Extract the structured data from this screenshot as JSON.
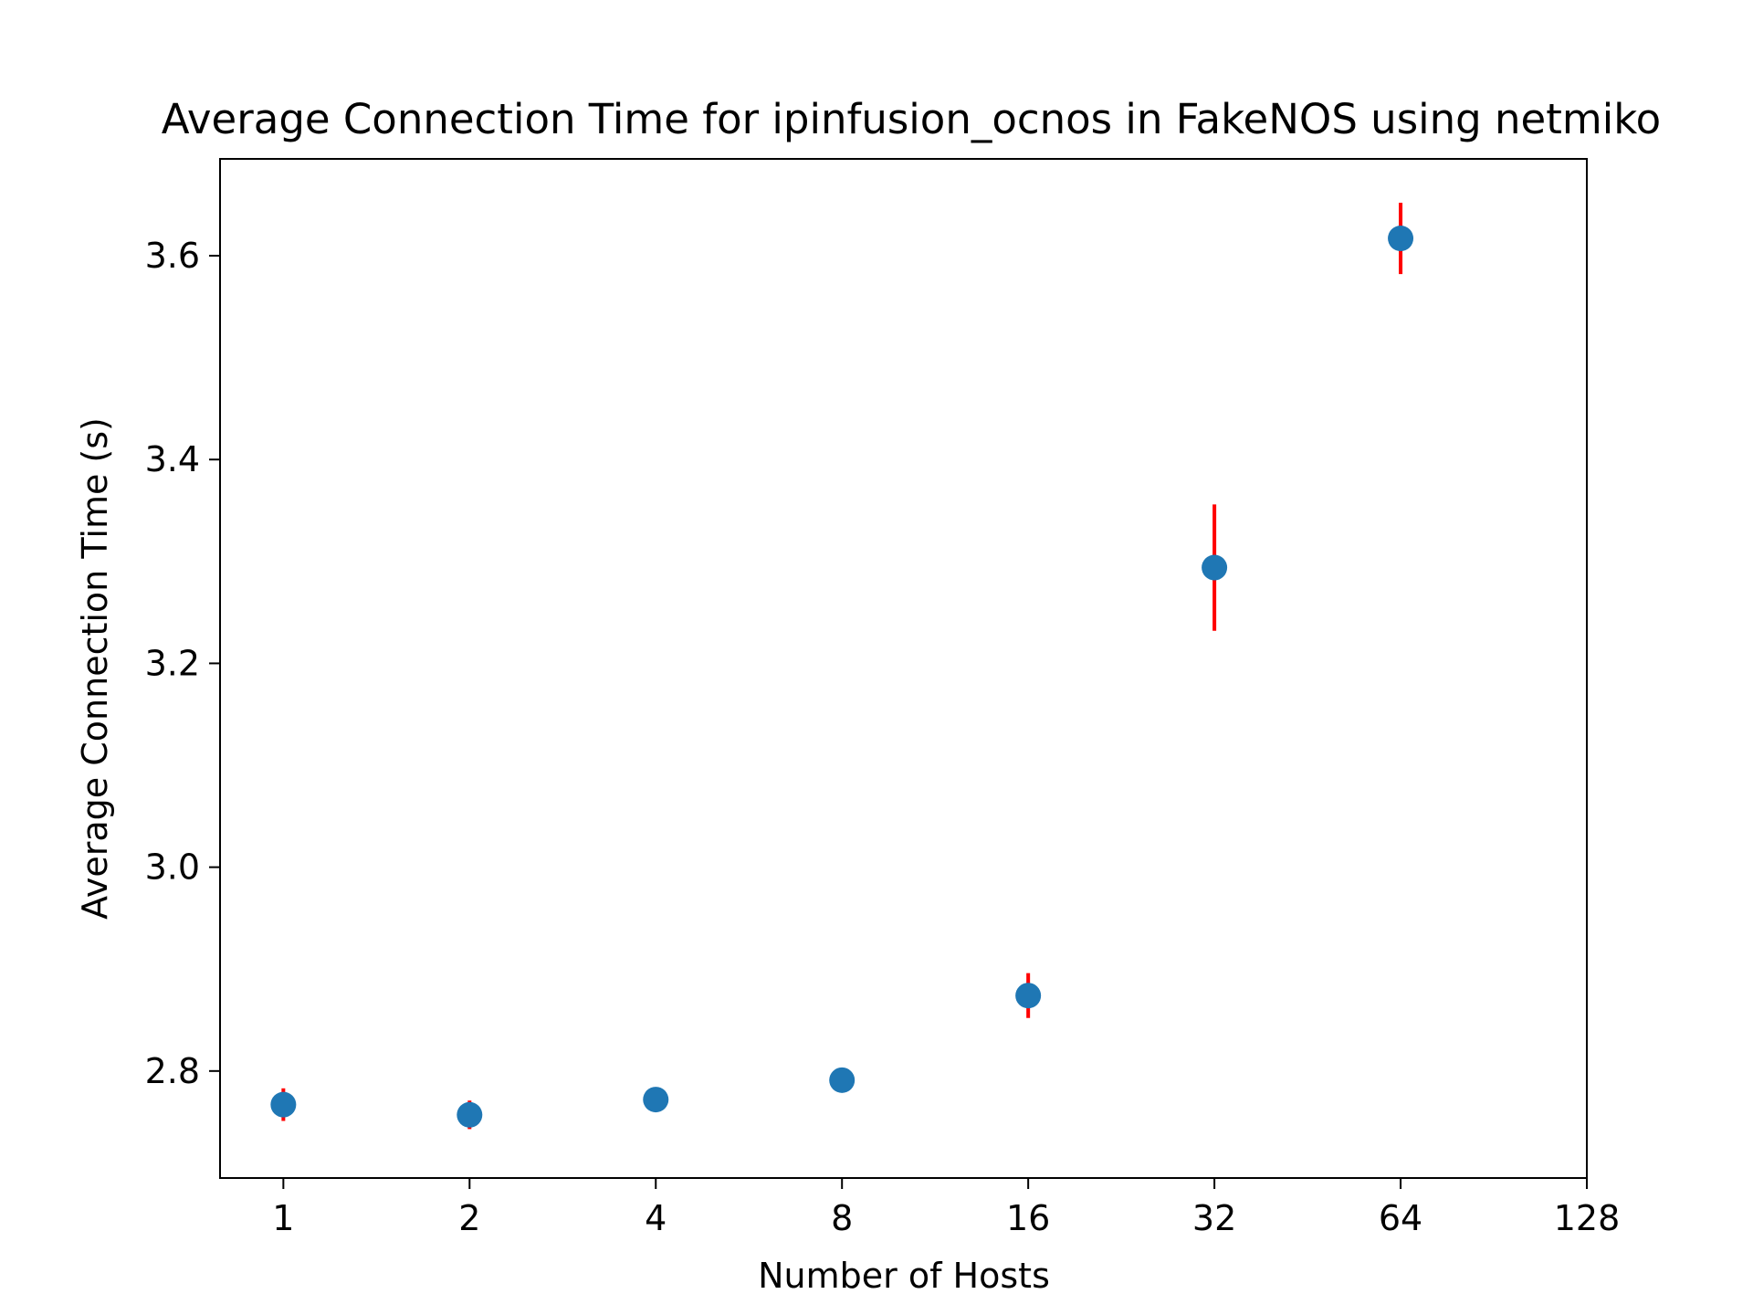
{
  "chart_data": {
    "type": "scatter",
    "title": "Average Connection Time for ipinfusion_ocnos in FakeNOS using netmiko",
    "xlabel": "Number of Hosts",
    "ylabel": "Average Connection Time (s)",
    "x_scale": "log2",
    "xlim": [
      0.79,
      128
    ],
    "ylim": [
      2.695,
      3.695
    ],
    "x_ticks": [
      1,
      2,
      4,
      8,
      16,
      32,
      64,
      128
    ],
    "x_tick_labels": [
      "1",
      "2",
      "4",
      "8",
      "16",
      "32",
      "64",
      "128"
    ],
    "y_ticks": [
      2.8,
      3.0,
      3.2,
      3.4,
      3.6
    ],
    "y_tick_labels": [
      "2.8",
      "3.0",
      "3.2",
      "3.4",
      "3.6"
    ],
    "grid": false,
    "series": [
      {
        "x": [
          1,
          2,
          4,
          8,
          16,
          32,
          64
        ],
        "y": [
          2.767,
          2.757,
          2.772,
          2.791,
          2.874,
          3.294,
          3.617
        ],
        "yerr": [
          0.016,
          0.014,
          0.006,
          0.007,
          0.022,
          0.062,
          0.035
        ],
        "marker_color": "#1f77b4",
        "error_color": "#ff0000"
      }
    ]
  }
}
